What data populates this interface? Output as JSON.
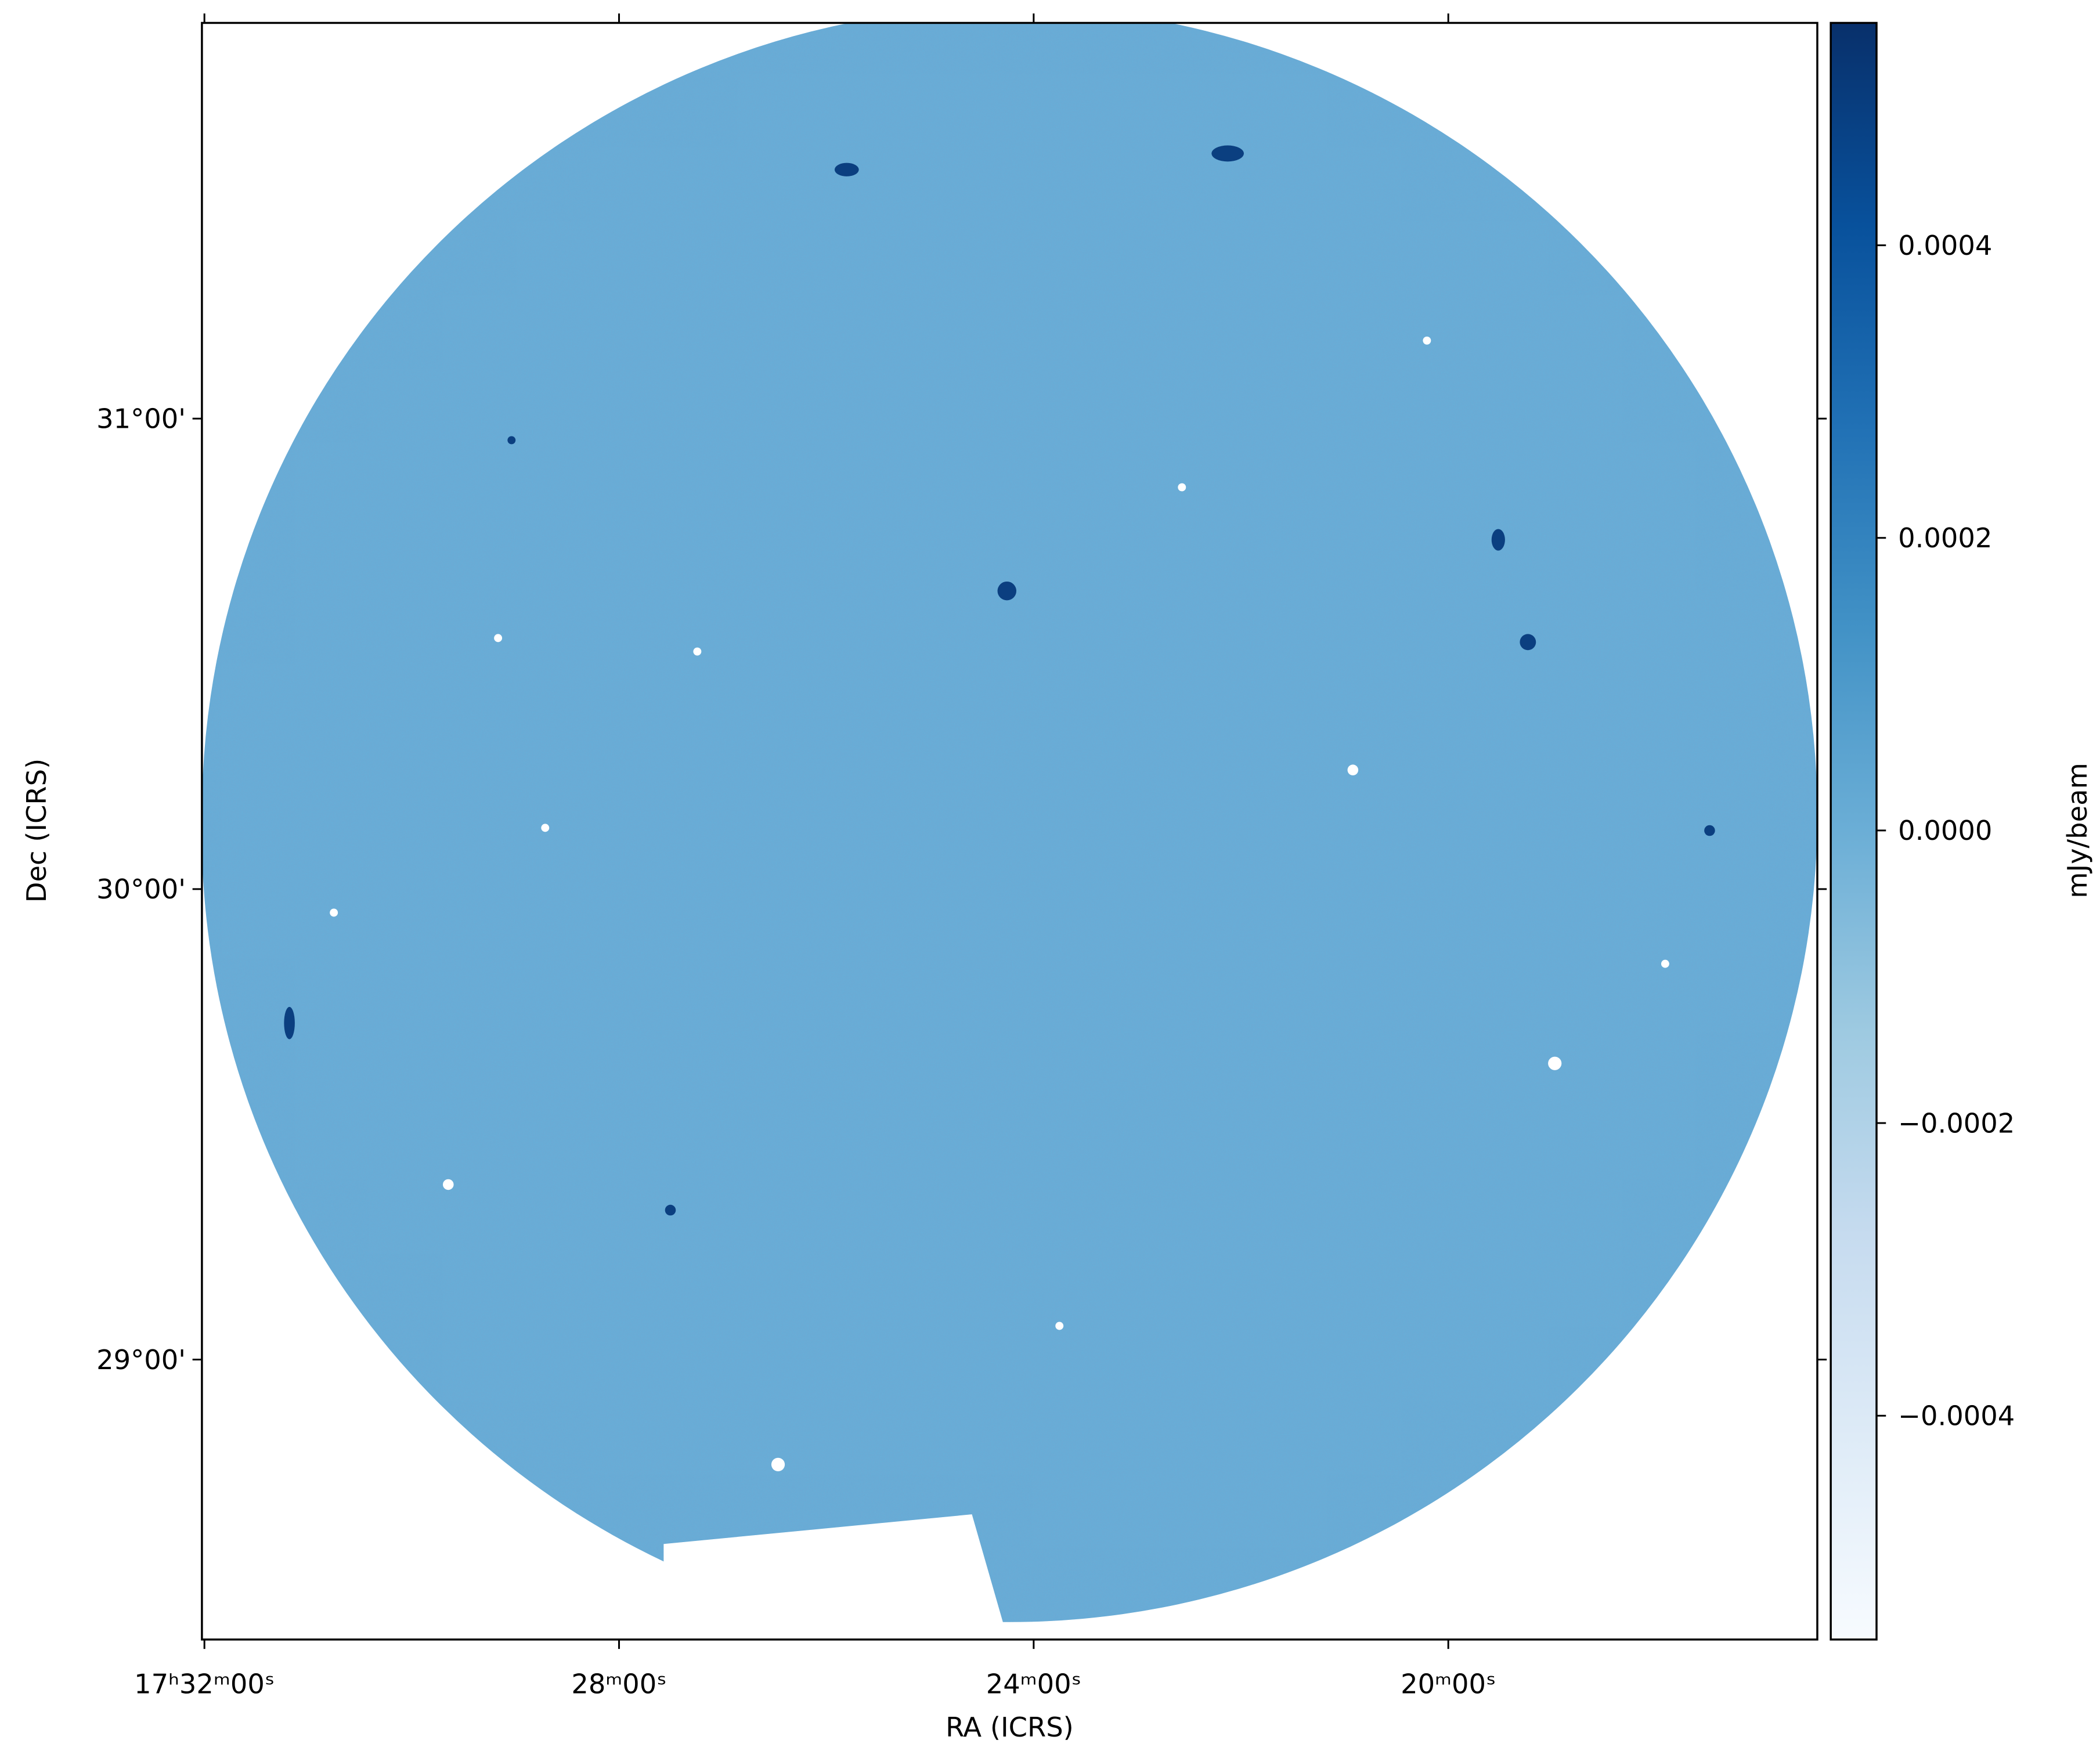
{
  "chart_data": {
    "type": "image",
    "xlabel": "RA (ICRS)",
    "ylabel": "Dec (ICRS)",
    "xlim": [
      263.006,
      259.11
    ],
    "xticks": [
      {
        "value": 263,
        "label": "17ʰ32ᵐ00ˢ"
      },
      {
        "value": 262,
        "label": "28ᵐ00ˢ"
      },
      {
        "value": 261,
        "label": "24ᵐ00ˢ"
      },
      {
        "value": 260,
        "label": "20ᵐ00ˢ"
      }
    ],
    "ylim": [
      28.405,
      31.841
    ],
    "yticks": [
      {
        "value": 29,
        "label": "29°00'"
      },
      {
        "value": 30,
        "label": "30°00'"
      },
      {
        "value": 31,
        "label": "31°00'"
      }
    ],
    "colorbar": {
      "label": "mJy/beam",
      "lim": [
        -0.000553,
        0.000552
      ],
      "ticks": [
        {
          "value": -0.0004,
          "label": "−0.0004"
        },
        {
          "value": -0.0002,
          "label": "−0.0002"
        },
        {
          "value": 0,
          "label": "0.0000"
        },
        0.0002,
        0.0004
      ],
      "colormap": [
        "#f7fbff",
        "#deebf7",
        "#c6dbef",
        "#9ecae1",
        "#6baed6",
        "#4292c6",
        "#2171b5",
        "#08519c",
        "#08306b"
      ]
    }
  }
}
